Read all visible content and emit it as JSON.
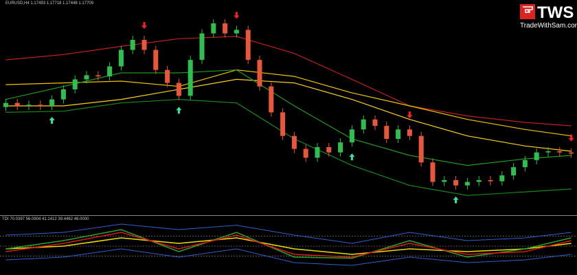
{
  "chart_data": [
    {
      "type": "candlestick",
      "title": "EURUSD,H4 1.17493 1.17718 1.17448 1.17709",
      "open": [
        1.168,
        1.1687,
        1.1682,
        1.1684,
        1.1682,
        1.1693,
        1.171,
        1.1727,
        1.1734,
        1.1732,
        1.1749,
        1.1777,
        1.1794,
        1.1777,
        1.1743,
        1.1721,
        1.1699,
        1.176,
        1.1805,
        1.1822,
        1.1805,
        1.1811,
        1.176,
        1.1715,
        1.1671,
        1.1631,
        1.1609,
        1.1594,
        1.1612,
        1.1603,
        1.162,
        1.1642,
        1.1659,
        1.1648,
        1.1626,
        1.1642,
        1.1631,
        1.1586,
        1.1553,
        1.1556,
        1.1547,
        1.1553,
        1.1556,
        1.1554,
        1.1564,
        1.1578,
        1.159,
        1.1603,
        1.1605,
        1.1603
      ],
      "high": [
        1.1694,
        1.1694,
        1.1691,
        1.1691,
        1.17,
        1.1717,
        1.1734,
        1.1741,
        1.1741,
        1.1756,
        1.1784,
        1.1801,
        1.1801,
        1.1784,
        1.175,
        1.1728,
        1.1767,
        1.1812,
        1.1829,
        1.1829,
        1.1818,
        1.1818,
        1.1767,
        1.1722,
        1.1678,
        1.1638,
        1.1616,
        1.1619,
        1.1619,
        1.1627,
        1.1649,
        1.1666,
        1.1666,
        1.1655,
        1.1649,
        1.1649,
        1.1638,
        1.1593,
        1.1563,
        1.1563,
        1.156,
        1.1563,
        1.1563,
        1.1571,
        1.1585,
        1.1597,
        1.161,
        1.1612,
        1.1612,
        1.161
      ],
      "low": [
        1.1673,
        1.1675,
        1.1675,
        1.1675,
        1.1675,
        1.1686,
        1.1703,
        1.172,
        1.1725,
        1.1725,
        1.1742,
        1.177,
        1.177,
        1.1736,
        1.1714,
        1.1692,
        1.1692,
        1.1753,
        1.1798,
        1.1798,
        1.1798,
        1.1753,
        1.1708,
        1.1664,
        1.1624,
        1.1602,
        1.1587,
        1.1587,
        1.1596,
        1.1596,
        1.1613,
        1.1635,
        1.1641,
        1.1619,
        1.1619,
        1.1624,
        1.1579,
        1.1546,
        1.1546,
        1.154,
        1.154,
        1.1546,
        1.1547,
        1.1547,
        1.1557,
        1.1571,
        1.1583,
        1.1596,
        1.1596,
        1.1594
      ],
      "close": [
        1.1687,
        1.1682,
        1.1684,
        1.1682,
        1.1693,
        1.171,
        1.1727,
        1.1734,
        1.1732,
        1.1749,
        1.1777,
        1.1794,
        1.1777,
        1.1743,
        1.1721,
        1.1699,
        1.176,
        1.1805,
        1.1822,
        1.1805,
        1.1811,
        1.176,
        1.1715,
        1.1671,
        1.1631,
        1.1609,
        1.1594,
        1.1612,
        1.1603,
        1.162,
        1.1642,
        1.1659,
        1.1648,
        1.1626,
        1.1642,
        1.1631,
        1.1586,
        1.1553,
        1.1556,
        1.1547,
        1.1553,
        1.1556,
        1.1554,
        1.1564,
        1.1578,
        1.159,
        1.1603,
        1.1605,
        1.1603,
        1.1601
      ],
      "up_color": "#2fbf4f",
      "down_color": "#e8573a",
      "ylim": [
        1.15,
        1.185
      ],
      "overlay_x": [
        0,
        5,
        10,
        15,
        20,
        25,
        30,
        35,
        40,
        45,
        49
      ],
      "overlays": [
        {
          "color": "#c0201a",
          "values": [
            1.176,
            1.1769,
            1.1783,
            1.1796,
            1.18,
            1.1771,
            1.1727,
            1.1682,
            1.1665,
            1.1654,
            1.1648
          ]
        },
        {
          "color": "#f2c400",
          "values": [
            1.1718,
            1.1721,
            1.1724,
            1.1715,
            1.1743,
            1.1732,
            1.1704,
            1.1682,
            1.1659,
            1.1642,
            1.1631
          ]
        },
        {
          "color": "#ffd21a",
          "values": [
            1.1682,
            1.1682,
            1.1693,
            1.171,
            1.1727,
            1.1721,
            1.1693,
            1.1659,
            1.1631,
            1.1614,
            1.1605
          ]
        },
        {
          "color": "#1f9a1f",
          "values": [
            1.1693,
            1.1715,
            1.1738,
            1.1738,
            1.1743,
            1.1682,
            1.1626,
            1.1598,
            1.1581,
            1.1592,
            1.1598
          ]
        },
        {
          "color": "#178a17",
          "values": [
            1.1671,
            1.1673,
            1.1687,
            1.1693,
            1.1687,
            1.1626,
            1.1581,
            1.1547,
            1.153,
            1.1536,
            1.1541
          ]
        }
      ],
      "buy_signals": [
        4,
        15,
        30,
        39
      ],
      "buy_color": "#33e6a0",
      "sell_signals": [
        12,
        20,
        35,
        49
      ],
      "sell_color": "#ff2020"
    },
    {
      "type": "line",
      "title": "TDI 70.0397 56.0904 41.1412 39.4462 46.0000",
      "x": [
        0,
        5,
        10,
        15,
        20,
        25,
        30,
        35,
        40,
        45,
        49
      ],
      "series": [
        {
          "color": "#2f5fd0",
          "values": [
            70,
            75,
            90,
            80,
            88,
            70,
            55,
            75,
            60,
            65,
            75
          ]
        },
        {
          "color": "#2f5fd0",
          "values": [
            25,
            30,
            45,
            30,
            45,
            20,
            15,
            30,
            20,
            25,
            35
          ]
        },
        {
          "color": "#f0e000",
          "values": [
            45,
            50,
            65,
            55,
            65,
            45,
            35,
            45,
            40,
            45,
            55
          ]
        },
        {
          "color": "#2aa52a",
          "values": [
            45,
            60,
            80,
            40,
            75,
            30,
            28,
            60,
            30,
            45,
            65
          ]
        },
        {
          "color": "#e01a1a",
          "values": [
            40,
            55,
            75,
            45,
            70,
            35,
            30,
            55,
            35,
            40,
            60
          ]
        }
      ],
      "ylim": [
        0,
        100
      ],
      "levels": [
        68,
        50,
        32
      ]
    }
  ],
  "logo": {
    "text": "TWS",
    "site": "TradeWithSam.com"
  }
}
